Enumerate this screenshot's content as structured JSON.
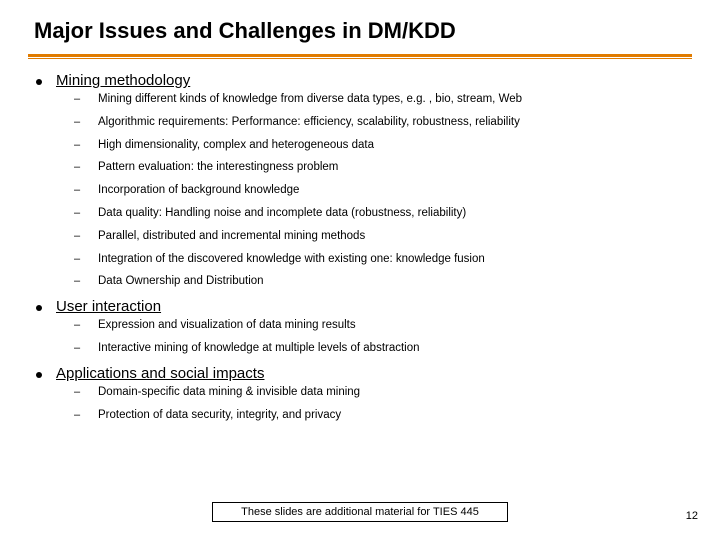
{
  "title": "Major Issues and Challenges in DM/KDD",
  "divider_color": "#e07b00",
  "sections": [
    {
      "heading": "Mining methodology",
      "items": [
        "Mining different kinds of knowledge from diverse data types, e.g. , bio, stream, Web",
        "Algorithmic requirements: Performance: efficiency, scalability, robustness, reliability",
        "High dimensionality, complex and heterogeneous data",
        "Pattern evaluation: the interestingness problem",
        "Incorporation of background knowledge",
        "Data quality: Handling noise and incomplete data (robustness, reliability)",
        "Parallel, distributed and incremental mining methods",
        "Integration of the discovered knowledge with existing one: knowledge fusion",
        "Data Ownership and Distribution"
      ]
    },
    {
      "heading": "User interaction",
      "items": [
        "Expression and visualization of data mining results",
        "Interactive mining of knowledge at multiple levels of abstraction"
      ]
    },
    {
      "heading": "Applications and social impacts",
      "items": [
        "Domain-specific data mining & invisible data mining",
        "Protection of data security, integrity, and privacy"
      ]
    }
  ],
  "footer": "These slides are additional material for TIES 445",
  "page_number": "12"
}
